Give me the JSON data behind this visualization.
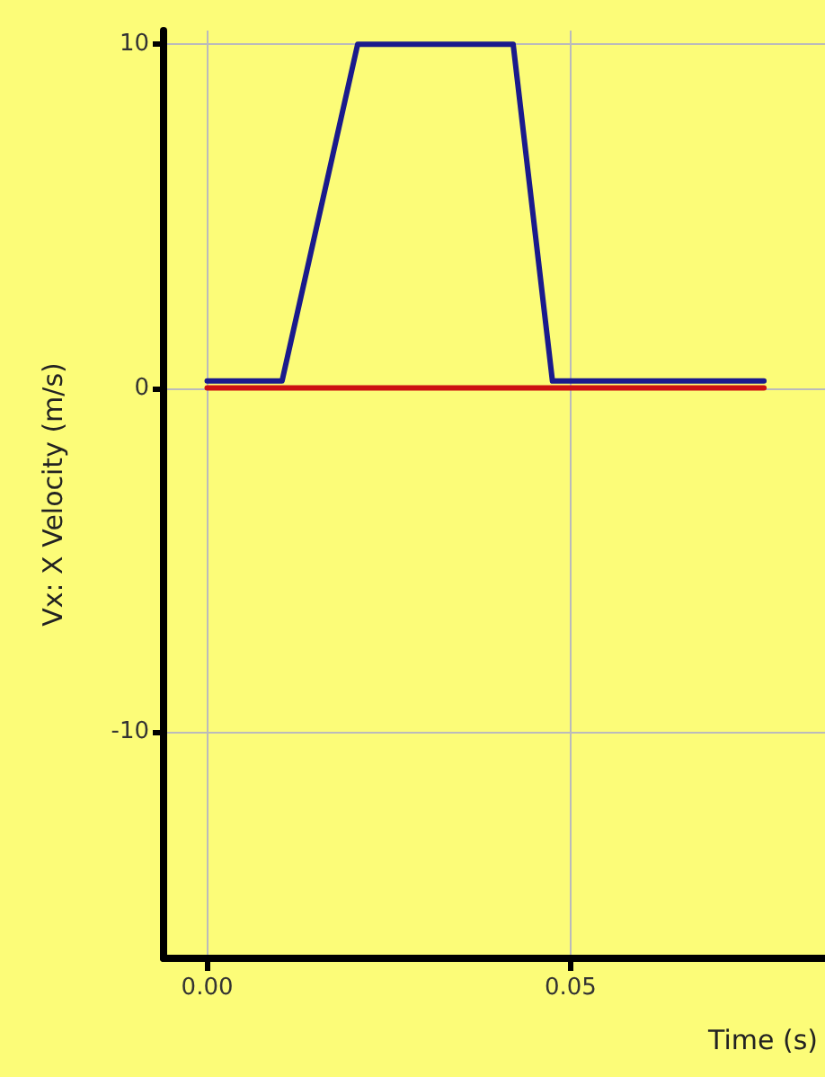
{
  "chart_data": {
    "type": "line",
    "xlabel": "Time (s)",
    "ylabel": "Vx: X Velocity (m/s)",
    "xlim": [
      -0.006,
      0.085
    ],
    "ylim": [
      -16.6,
      10.4
    ],
    "xticks": [
      {
        "value": 0,
        "label": "0.00"
      },
      {
        "value": 0.05,
        "label": "0.05"
      }
    ],
    "yticks": [
      -10,
      0,
      10
    ],
    "grid": true,
    "marker": "none",
    "line_style": "solid",
    "series": [
      {
        "color": "#cc1111",
        "x": [
          0,
          0.0766
        ],
        "values": [
          0,
          0
        ]
      },
      {
        "color": "#1a1a8c",
        "x": [
          0,
          0.0103,
          0.0207,
          0.0421,
          0.0475,
          0.0766
        ],
        "values": [
          0.2,
          0.2,
          10,
          10,
          0.2,
          0.2
        ]
      }
    ]
  }
}
